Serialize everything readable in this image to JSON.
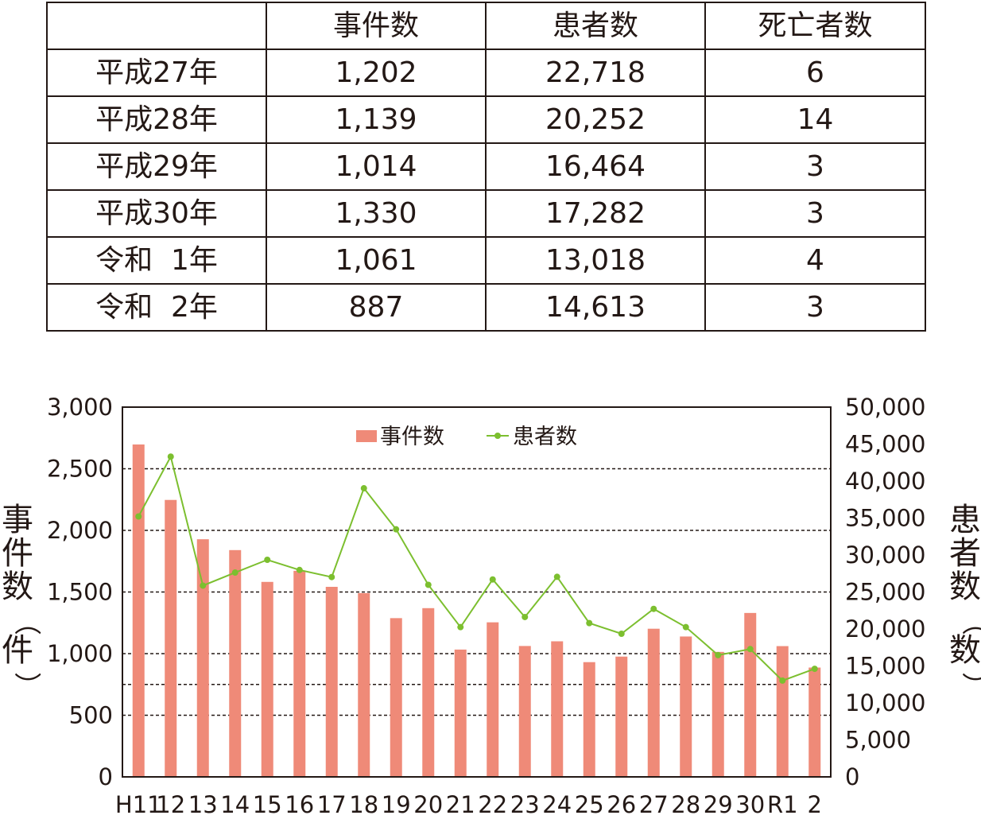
{
  "table": {
    "headers": [
      "",
      "事件数",
      "患者数",
      "死亡者数"
    ],
    "rows": [
      [
        "平成27年",
        "1,202",
        "22,718",
        "6"
      ],
      [
        "平成28年",
        "1,139",
        "20,252",
        "14"
      ],
      [
        "平成29年",
        "1,014",
        "16,464",
        "3"
      ],
      [
        "平成30年",
        "1,330",
        "17,282",
        "3"
      ],
      [
        "令和  1年",
        "1,061",
        "13,018",
        "4"
      ],
      [
        "令和  2年",
        "887",
        "14,613",
        "3"
      ]
    ]
  },
  "chart_data": {
    "type": "bar",
    "categories": [
      "H11",
      "12",
      "13",
      "14",
      "15",
      "16",
      "17",
      "18",
      "19",
      "20",
      "21",
      "22",
      "23",
      "24",
      "25",
      "26",
      "27",
      "28",
      "29",
      "30",
      "R1",
      "2"
    ],
    "series": [
      {
        "name": "事件数",
        "type": "bar",
        "axis": "left",
        "color": "#ef8a78",
        "values": [
          2697,
          2247,
          1928,
          1840,
          1582,
          1672,
          1542,
          1491,
          1288,
          1369,
          1033,
          1254,
          1062,
          1100,
          931,
          976,
          1202,
          1139,
          1014,
          1330,
          1061,
          887
        ]
      },
      {
        "name": "患者数",
        "type": "line",
        "axis": "right",
        "color": "#7cbf2f",
        "values": [
          35214,
          43307,
          25862,
          27629,
          29355,
          27981,
          27019,
          39026,
          33477,
          25972,
          20249,
          26699,
          21616,
          27051,
          20794,
          19355,
          22718,
          20252,
          16464,
          17282,
          13018,
          14613
        ]
      }
    ],
    "y_left": {
      "label": "事件数（件）",
      "min": 0,
      "max": 3000,
      "ticks": [
        "0",
        "500",
        "1,000",
        "1,500",
        "2,000",
        "2,500",
        "3,000"
      ],
      "tick_values": [
        0,
        500,
        1000,
        1500,
        2000,
        2500,
        3000
      ]
    },
    "y_right": {
      "label": "患者数（数）",
      "min": 0,
      "max": 50000,
      "ticks": [
        "0",
        "5,000",
        "10,000",
        "15,000",
        "20,000",
        "25,000",
        "30,000",
        "35,000",
        "40,000",
        "45,000",
        "50,000"
      ],
      "tick_values": [
        0,
        5000,
        10000,
        15000,
        20000,
        25000,
        30000,
        35000,
        40000,
        45000,
        50000
      ]
    },
    "gridlines_left": [
      500,
      750,
      1000,
      1500,
      2000,
      2500
    ],
    "legend": {
      "items": [
        "事件数",
        "患者数"
      ],
      "placement": "top-center"
    }
  }
}
